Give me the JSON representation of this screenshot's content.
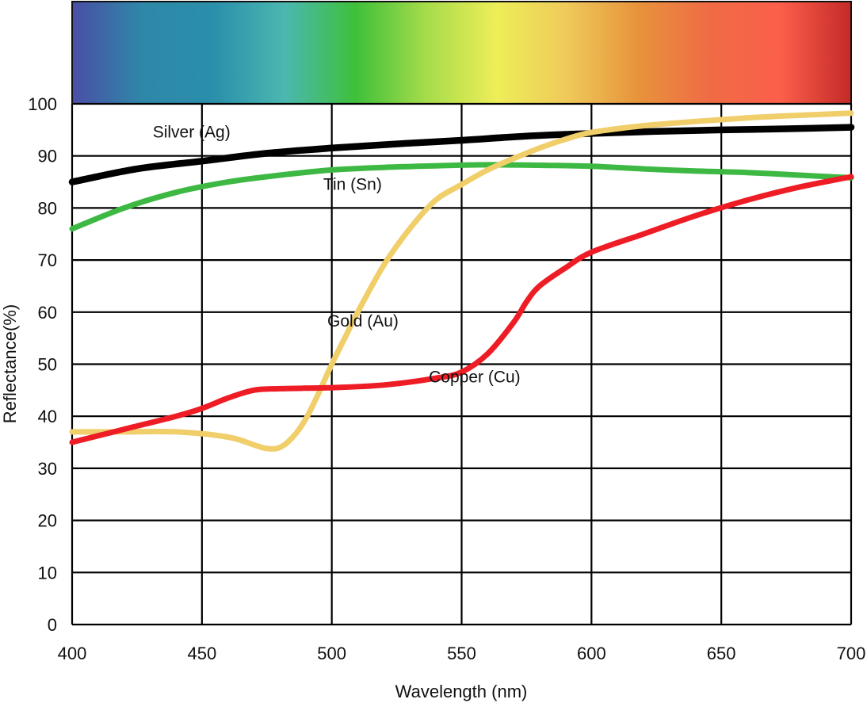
{
  "chart_data": {
    "type": "line",
    "title": "",
    "xlabel": "Wavelength (nm)",
    "ylabel": "Reflectance(%)",
    "xlim": [
      400,
      700
    ],
    "ylim": [
      0,
      100
    ],
    "xticks": [
      400,
      450,
      500,
      550,
      600,
      650,
      700
    ],
    "yticks": [
      0,
      10,
      20,
      30,
      40,
      50,
      60,
      70,
      80,
      90,
      100
    ],
    "grid": true,
    "spectrum_colors": [
      "#4a4ea6",
      "#2e88a8",
      "#2a8fab",
      "#4bb7b0",
      "#3fc03a",
      "#a6dc4a",
      "#eeee58",
      "#efc95a",
      "#e7933b",
      "#f06b45",
      "#fb5f4a",
      "#c42a28"
    ],
    "series": [
      {
        "name": "Silver (Ag)",
        "color": "#000000",
        "x": [
          400,
          425,
          450,
          475,
          500,
          525,
          550,
          575,
          600,
          625,
          650,
          675,
          700
        ],
        "values": [
          85,
          87.5,
          89,
          90.5,
          91.5,
          92.3,
          93,
          93.8,
          94.3,
          94.7,
          95,
          95.2,
          95.5
        ]
      },
      {
        "name": "Tin (Sn)",
        "color": "#3db843",
        "x": [
          400,
          420,
          440,
          460,
          480,
          500,
          520,
          540,
          560,
          580,
          600,
          620,
          640,
          660,
          680,
          700
        ],
        "values": [
          76,
          80,
          83,
          85,
          86.3,
          87.3,
          87.8,
          88.1,
          88.3,
          88.2,
          88,
          87.5,
          87.1,
          86.8,
          86.3,
          85.8
        ]
      },
      {
        "name": "Gold (Au)",
        "color": "#f0ce6a",
        "x": [
          400,
          420,
          440,
          460,
          470,
          475,
          480,
          485,
          490,
          495,
          500,
          505,
          510,
          520,
          530,
          540,
          550,
          560,
          570,
          580,
          590,
          600,
          620,
          640,
          660,
          680,
          700
        ],
        "values": [
          37,
          37,
          37,
          36,
          34.5,
          33.8,
          34,
          36,
          39.5,
          44.5,
          50,
          55,
          60,
          69,
          76,
          81.5,
          84.5,
          87.3,
          89.5,
          91.5,
          93.2,
          94.5,
          95.8,
          96.6,
          97.3,
          97.8,
          98.2
        ]
      },
      {
        "name": "Copper (Cu)",
        "color": "#ee1c24",
        "x": [
          400,
          420,
          440,
          450,
          460,
          470,
          480,
          500,
          520,
          540,
          550,
          560,
          570,
          575,
          580,
          590,
          600,
          620,
          640,
          660,
          680,
          700
        ],
        "values": [
          35,
          37.5,
          40,
          41.5,
          43.5,
          45,
          45.3,
          45.5,
          46,
          47.3,
          48.5,
          52,
          58,
          62,
          65,
          68.5,
          71.5,
          75,
          78.5,
          81.5,
          84,
          86
        ]
      }
    ],
    "annotations": [
      {
        "text": "Silver (Ag)",
        "x": 446,
        "y": 93.5
      },
      {
        "text": "Tin (Sn)",
        "x": 508,
        "y": 83.5
      },
      {
        "text": "Gold (Au)",
        "x": 512,
        "y": 57.2
      },
      {
        "text": "Copper (Cu)",
        "x": 555,
        "y": 46.5
      }
    ]
  }
}
